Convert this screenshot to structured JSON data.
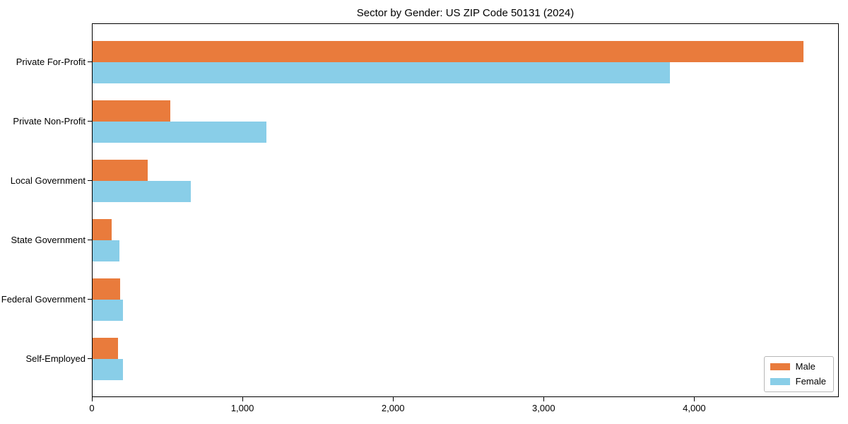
{
  "title": "Sector by Gender: US ZIP Code 50131 (2024)",
  "chart_data": {
    "type": "bar",
    "orientation": "horizontal",
    "title": "Sector by Gender: US ZIP Code 50131 (2024)",
    "categories": [
      "Private For-Profit",
      "Private Non-Profit",
      "Local Government",
      "State Government",
      "Federal Government",
      "Self-Employed"
    ],
    "series": [
      {
        "name": "Male",
        "color": "#E97B3C",
        "values": [
          4720,
          515,
          365,
          127,
          183,
          169
        ]
      },
      {
        "name": "Female",
        "color": "#89CEE8",
        "values": [
          3835,
          1155,
          650,
          178,
          202,
          202
        ]
      }
    ],
    "xlabel": "",
    "ylabel": "",
    "xlim": [
      0,
      4960
    ],
    "xticks": [
      0,
      1000,
      2000,
      3000,
      4000
    ],
    "xtick_labels": [
      "0",
      "1,000",
      "2,000",
      "3,000",
      "4,000"
    ],
    "grid": false,
    "legend_position": "lower right"
  },
  "legend": {
    "items": [
      {
        "label": "Male",
        "color": "#E97B3C"
      },
      {
        "label": "Female",
        "color": "#89CEE8"
      }
    ]
  }
}
